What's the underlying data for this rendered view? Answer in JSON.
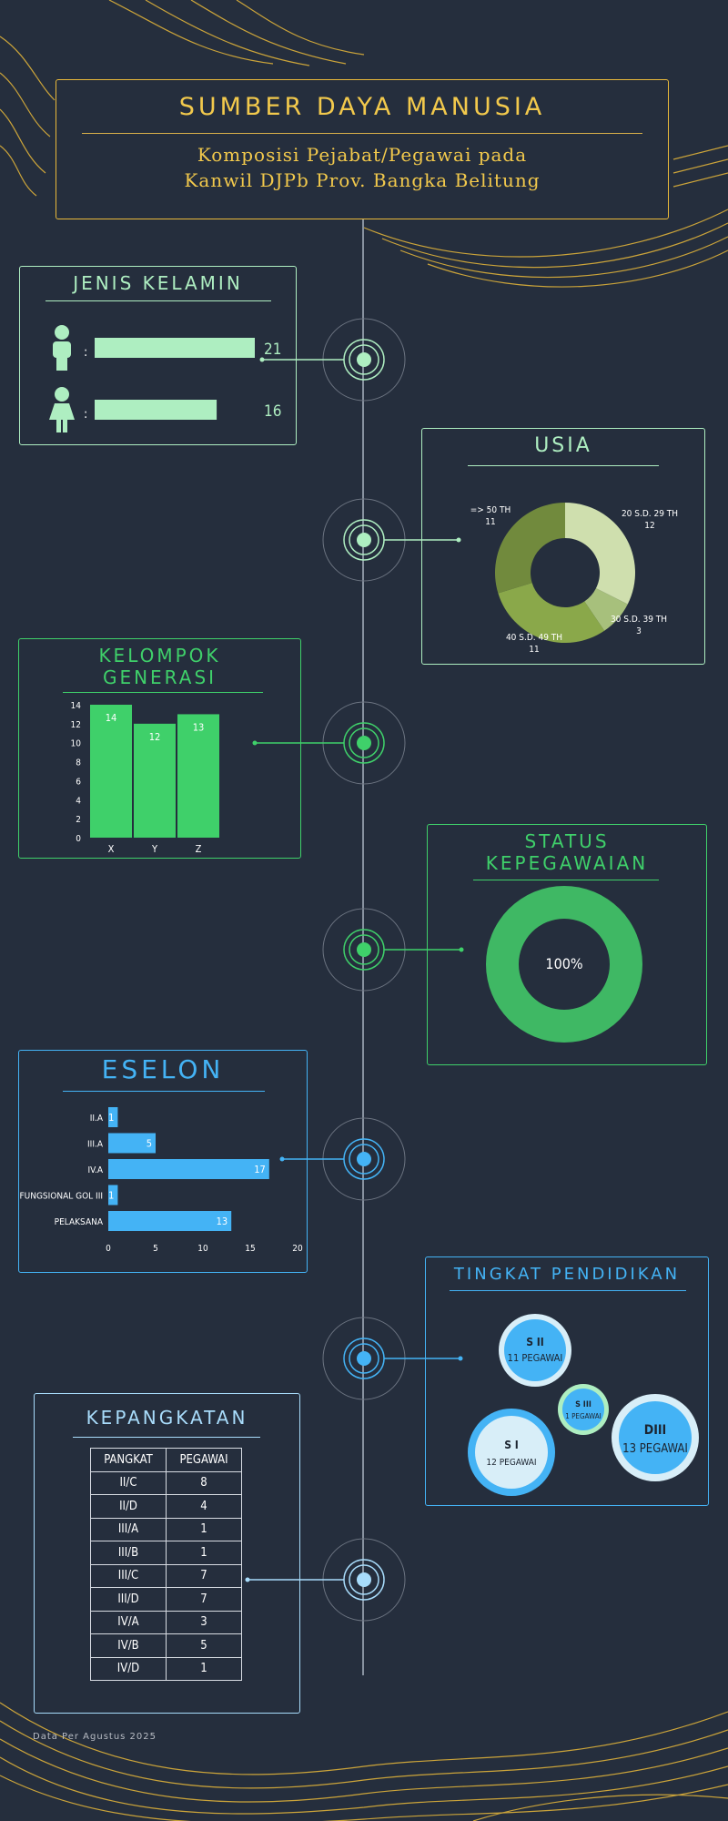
{
  "header": {
    "title": "SUMBER DAYA MANUSIA",
    "subtitle_line1": "Komposisi Pejabat/Pegawai pada",
    "subtitle_line2": "Kanwil DJPb Prov. Bangka Belitung"
  },
  "colors": {
    "background": "#252e3d",
    "gold": "#f2c94c",
    "light_green": "#aeeec1",
    "green": "#3fd06a",
    "blue": "#44b3f5"
  },
  "icons": [
    "male-person-icon",
    "female-person-icon"
  ],
  "footer": {
    "note": "Data Per Agustus 2025"
  },
  "chart_data": [
    {
      "id": "jenis_kelamin",
      "type": "bar",
      "title": "JENIS KELAMIN",
      "categories": [
        "male-person-icon",
        "female-person-icon"
      ],
      "values": [
        21,
        16
      ],
      "separator": ":",
      "color": "#aeeec1"
    },
    {
      "id": "usia",
      "type": "pie",
      "title": "USIA",
      "labels": [
        "20 S.D. 29 TH",
        "30 S.D. 39 TH",
        "40 S.D. 49 TH",
        "=> 50 TH"
      ],
      "values": [
        12,
        3,
        11,
        11
      ],
      "colors": [
        "#cfdfae",
        "#a7c07c",
        "#8aa84a",
        "#718a3d"
      ]
    },
    {
      "id": "kelompok_generasi",
      "type": "bar",
      "title_line1": "KELOMPOK",
      "title_line2": "GENERASI",
      "categories": [
        "X",
        "Y",
        "Z"
      ],
      "values": [
        14,
        12,
        13
      ],
      "ylim": [
        0,
        14
      ],
      "yticks": [
        0,
        2,
        4,
        6,
        8,
        10,
        12,
        14
      ],
      "color": "#3fd06a"
    },
    {
      "id": "status_kepegawaian",
      "type": "pie",
      "title_line1": "STATUS",
      "title_line2": "KEPEGAWAIAN",
      "values": [
        100
      ],
      "center_label": "100%",
      "colors": [
        "#3fb864"
      ]
    },
    {
      "id": "eselon",
      "type": "bar",
      "orientation": "horizontal",
      "title": "ESELON",
      "categories": [
        "II.A",
        "III.A",
        "IV.A",
        "FUNGSIONAL GOL III",
        "PELAKSANA"
      ],
      "values": [
        1,
        5,
        17,
        1,
        13
      ],
      "xlim": [
        0,
        20
      ],
      "xticks": [
        0,
        5,
        10,
        15,
        20
      ],
      "color": "#44b3f5"
    },
    {
      "id": "tingkat_pendidikan",
      "type": "scatter",
      "subtype": "bubble",
      "title": "TINGKAT PENDIDIKAN",
      "items": [
        {
          "level": "S II",
          "label": "11 PEGAWAI",
          "value": 11
        },
        {
          "level": "S III",
          "label": "1 PEGAWAI",
          "value": 1
        },
        {
          "level": "S I",
          "label": "12 PEGAWAI",
          "value": 12
        },
        {
          "level": "DIII",
          "label": "13 PEGAWAI",
          "value": 13
        }
      ]
    },
    {
      "id": "kepangkatan",
      "type": "table",
      "title": "KEPANGKATAN",
      "columns": [
        "PANGKAT",
        "PEGAWAI"
      ],
      "rows": [
        [
          "II/C",
          "8"
        ],
        [
          "II/D",
          "4"
        ],
        [
          "III/A",
          "1"
        ],
        [
          "III/B",
          "1"
        ],
        [
          "III/C",
          "7"
        ],
        [
          "III/D",
          "7"
        ],
        [
          "IV/A",
          "3"
        ],
        [
          "IV/B",
          "5"
        ],
        [
          "IV/D",
          "1"
        ]
      ]
    }
  ]
}
